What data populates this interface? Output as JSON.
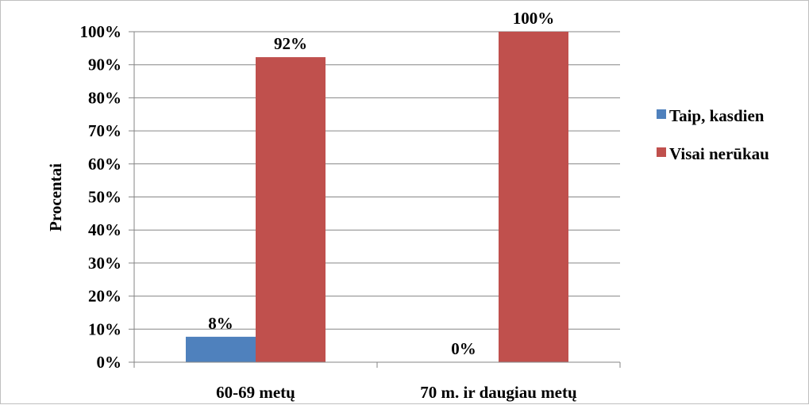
{
  "chart_data": {
    "type": "bar",
    "title": "",
    "xlabel": "",
    "ylabel": "Procentai",
    "ylim": [
      0,
      100
    ],
    "y_ticks": [
      0,
      10,
      20,
      30,
      40,
      50,
      60,
      70,
      80,
      90,
      100
    ],
    "y_tick_labels": [
      "0%",
      "10%",
      "20%",
      "30%",
      "40%",
      "50%",
      "60%",
      "70%",
      "80%",
      "90%",
      "100%"
    ],
    "categories": [
      "60-69 metų",
      "70 m. ir daugiau metų"
    ],
    "series": [
      {
        "name": "Taip, kasdien",
        "values": [
          7.7,
          0
        ],
        "data_labels": [
          "8%",
          "0%"
        ],
        "color": "#4f81bd"
      },
      {
        "name": "Visai nerūkau",
        "values": [
          92.3,
          100
        ],
        "data_labels": [
          "92%",
          "100%"
        ],
        "color": "#c0504d"
      }
    ],
    "grid": true,
    "legend_position": "right"
  }
}
